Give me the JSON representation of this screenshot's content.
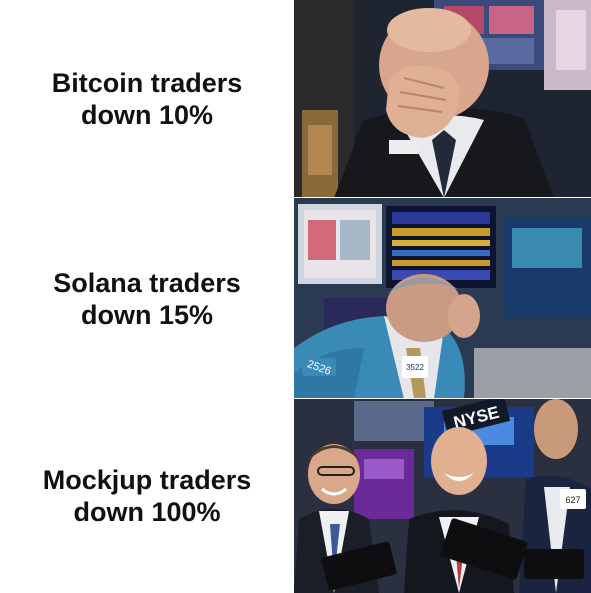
{
  "panels": [
    {
      "line1": "Bitcoin traders",
      "line2": "down 10%"
    },
    {
      "line1": "Solana traders",
      "line2": "down 15%"
    },
    {
      "line1": "Mockjup traders",
      "line2": "down 100%"
    }
  ],
  "photo_text": {
    "badge_2526": "2526",
    "badge_3522": "3522",
    "nyse": "NYSE",
    "badge_627": "627"
  },
  "colors": {
    "caption_text": "#111111",
    "background": "#ffffff"
  }
}
